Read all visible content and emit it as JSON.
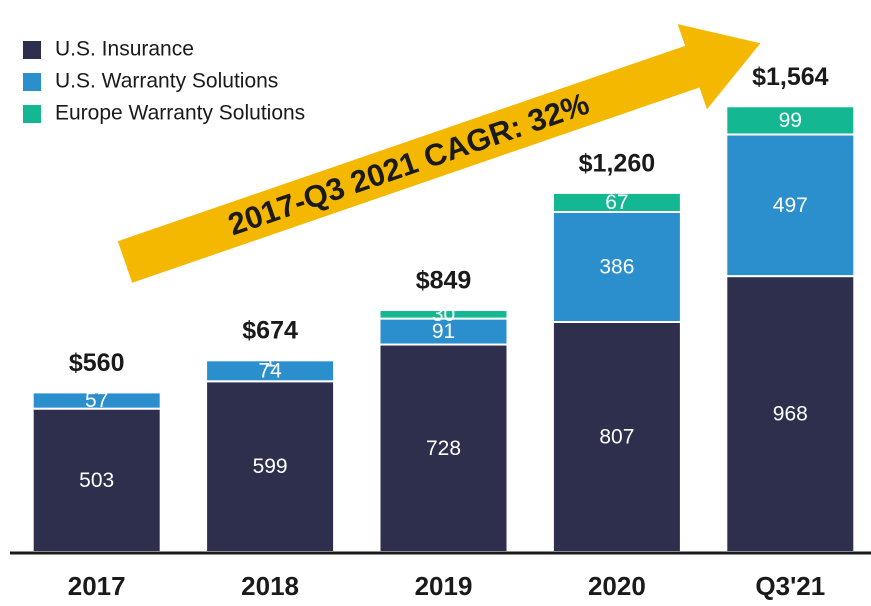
{
  "chart_data": {
    "type": "stacked_bar",
    "categories": [
      "2017",
      "2018",
      "2019",
      "2020",
      "Q3'21"
    ],
    "series": [
      {
        "name": "U.S. Insurance",
        "color": "#2e2f4d",
        "values": [
          503,
          599,
          728,
          807,
          968
        ]
      },
      {
        "name": "U.S. Warranty Solutions",
        "color": "#2b8fce",
        "values": [
          57,
          74,
          91,
          386,
          497
        ]
      },
      {
        "name": "Europe Warranty Solutions",
        "color": "#13b893",
        "values": [
          null,
          1,
          30,
          67,
          99
        ]
      }
    ],
    "totals": [
      560,
      674,
      849,
      1260,
      1564
    ],
    "total_labels": [
      "$560",
      "$674",
      "$849",
      "$1,260",
      "$1,564"
    ],
    "annotation": "2017-Q3 2021 CAGR: 32%",
    "ylim": [
      0,
      1600
    ]
  }
}
